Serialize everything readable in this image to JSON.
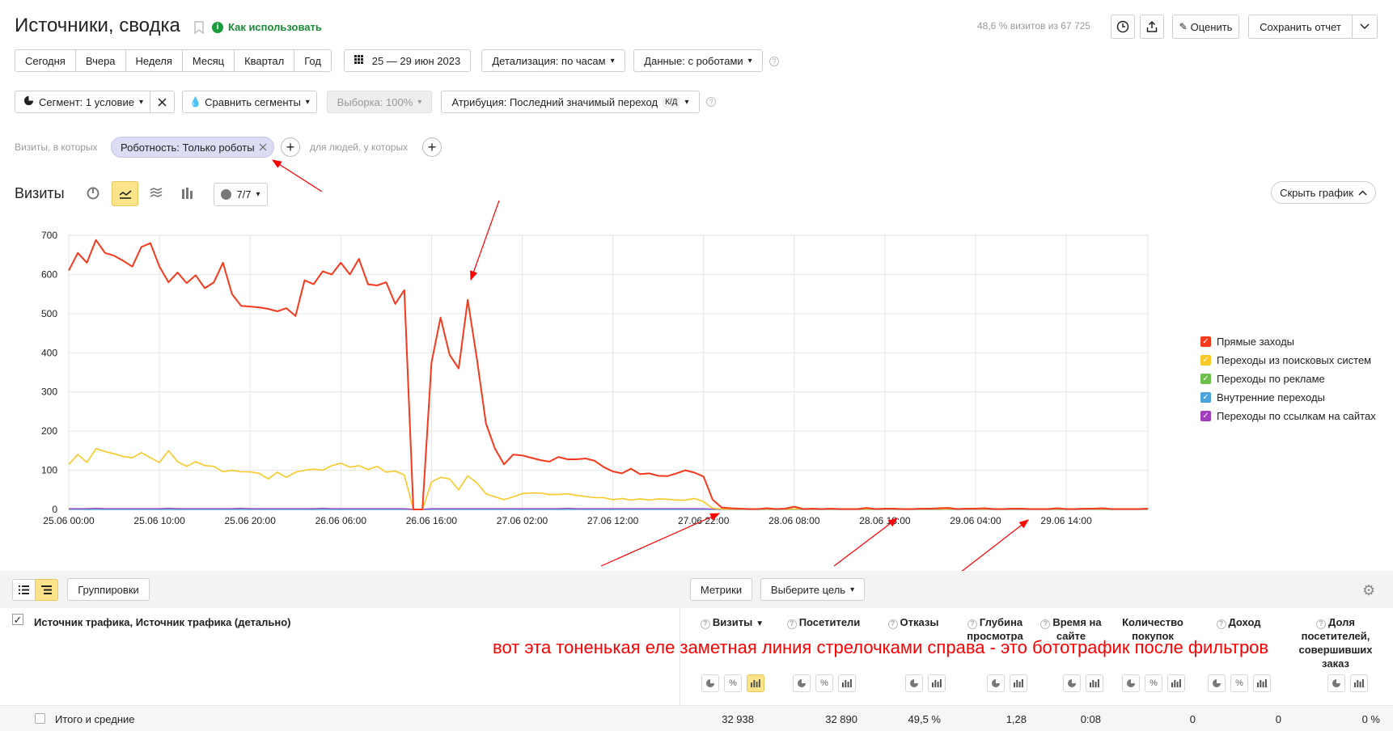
{
  "header": {
    "title": "Источники, сводка",
    "how_to_use": "Как использовать",
    "visits_info": "48,6 % визитов из 67 725",
    "rate_label": "Оценить",
    "save_report_label": "Сохранить отчет"
  },
  "periods": [
    "Сегодня",
    "Вчера",
    "Неделя",
    "Месяц",
    "Квартал",
    "Год"
  ],
  "date_range": "25 — 29 июн 2023",
  "detail_label": "Детализация: по часам",
  "data_label": "Данные: с роботами",
  "segment": {
    "label": "Сегмент: 1 условие",
    "compare_label": "Сравнить сегменты",
    "sample_label": "Выборка: 100%",
    "attribution_label": "Атрибуция: Последний значимый переход",
    "attribution_badge": "К/Д"
  },
  "filter": {
    "visits_prefix": "Визиты, в которых",
    "chip_label": "Роботность: Только роботы",
    "people_prefix": "для людей, у которых"
  },
  "chart_header": {
    "title": "Визиты",
    "series_count": "7/7",
    "hide_chart": "Скрыть график"
  },
  "legend": [
    {
      "name": "Прямые заходы",
      "color": "#f5391c"
    },
    {
      "name": "Переходы из поисковых систем",
      "color": "#f9c826"
    },
    {
      "name": "Переходы по рекламе",
      "color": "#6cc04a"
    },
    {
      "name": "Внутренние переходы",
      "color": "#4aa3df"
    },
    {
      "name": "Переходы по ссылкам на сайтах",
      "color": "#a23dbf"
    }
  ],
  "chart_data": {
    "type": "line",
    "x_ticks": [
      "25.06 00:00",
      "25.06 10:00",
      "25.06 20:00",
      "26.06 06:00",
      "26.06 16:00",
      "27.06 02:00",
      "27.06 12:00",
      "27.06 22:00",
      "28.06 08:00",
      "28.06 18:00",
      "29.06 04:00",
      "29.06 14:00"
    ],
    "y_ticks": [
      0,
      100,
      200,
      300,
      400,
      500,
      600,
      700
    ],
    "ylim": [
      0,
      700
    ],
    "x_hours_span": 119,
    "series": [
      {
        "name": "Прямые заходы",
        "color": "#f5391c",
        "values": [
          610,
          655,
          630,
          688,
          655,
          648,
          635,
          620,
          670,
          680,
          620,
          580,
          605,
          578,
          598,
          565,
          580,
          630,
          550,
          520,
          518,
          516,
          512,
          506,
          514,
          494,
          585,
          575,
          608,
          600,
          630,
          600,
          640,
          575,
          572,
          580,
          525,
          560,
          0,
          0,
          375,
          490,
          395,
          360,
          535,
          385,
          220,
          155,
          115,
          140,
          138,
          132,
          126,
          122,
          134,
          128,
          128,
          130,
          124,
          108,
          97,
          92,
          104,
          90,
          92,
          86,
          85,
          92,
          100,
          94,
          84,
          25,
          5,
          3,
          2,
          1,
          1,
          3,
          1,
          2,
          7,
          1,
          2,
          1,
          2,
          1,
          1,
          1,
          4,
          1,
          2,
          2,
          1,
          1,
          2,
          2,
          3,
          4,
          1,
          2,
          2,
          3,
          1,
          1,
          2,
          2,
          1,
          1,
          1,
          3,
          1,
          1,
          2,
          2,
          3,
          1,
          1,
          1,
          1,
          2
        ]
      },
      {
        "name": "Переходы из поисковых систем",
        "color": "#f9c826",
        "values": [
          115,
          140,
          120,
          155,
          148,
          142,
          135,
          132,
          145,
          132,
          120,
          150,
          122,
          110,
          122,
          112,
          110,
          96,
          100,
          96,
          96,
          92,
          78,
          95,
          82,
          95,
          100,
          103,
          100,
          112,
          118,
          108,
          112,
          102,
          110,
          95,
          98,
          88,
          0,
          0,
          70,
          82,
          78,
          50,
          86,
          68,
          40,
          32,
          25,
          32,
          40,
          42,
          42,
          38,
          38,
          40,
          36,
          33,
          30,
          30,
          25,
          28,
          24,
          27,
          24,
          27,
          26,
          24,
          24,
          28,
          20,
          3,
          1,
          1,
          1,
          1,
          1,
          1,
          1,
          1,
          1,
          1,
          1,
          1,
          1,
          1,
          1,
          1,
          1,
          1,
          1,
          1,
          1,
          1,
          1,
          1,
          1,
          1,
          1,
          1,
          1,
          1,
          1,
          1,
          1,
          1,
          1,
          1,
          1,
          1,
          1,
          1,
          1,
          1,
          1,
          1,
          1,
          1,
          1,
          1
        ]
      },
      {
        "name": "Переходы по рекламе",
        "color": "#6cc04a",
        "values": [
          0,
          0,
          0,
          0,
          0,
          0,
          0,
          0,
          0,
          0,
          0,
          0,
          0,
          0,
          0,
          0,
          0,
          0,
          0,
          0,
          0,
          0,
          0,
          0,
          0,
          0,
          0,
          0,
          0,
          0,
          0,
          0,
          0,
          0,
          0,
          0,
          0,
          0,
          0,
          0,
          0,
          0,
          0,
          0,
          0,
          0,
          0,
          0,
          0,
          0,
          0,
          0,
          0,
          0,
          0,
          0,
          0,
          0,
          0,
          0,
          0,
          0,
          0,
          0,
          0,
          0,
          0,
          0,
          0,
          0,
          0,
          0,
          0,
          0,
          0,
          0,
          0,
          0,
          0,
          0,
          0,
          0,
          0,
          0,
          0,
          0,
          0,
          0,
          0,
          0,
          0,
          0,
          0,
          0,
          0,
          0,
          0,
          0,
          0,
          0,
          0,
          0,
          0,
          0,
          0,
          0,
          0,
          0,
          0,
          0,
          0,
          0,
          0,
          0,
          0,
          0,
          0,
          0,
          0,
          0
        ]
      },
      {
        "name": "Внутренние переходы",
        "color": "#4aa3df",
        "values": [
          0,
          0,
          0,
          0,
          0,
          0,
          0,
          0,
          0,
          0,
          0,
          0,
          0,
          0,
          0,
          0,
          0,
          0,
          0,
          0,
          0,
          0,
          0,
          0,
          0,
          0,
          0,
          0,
          0,
          0,
          0,
          0,
          0,
          0,
          0,
          0,
          0,
          0,
          0,
          0,
          0,
          0,
          0,
          0,
          0,
          0,
          0,
          0,
          0,
          0,
          0,
          0,
          0,
          0,
          0,
          0,
          0,
          0,
          0,
          0,
          0,
          0,
          0,
          0,
          0,
          0,
          0,
          0,
          0,
          0,
          0,
          0,
          0,
          0,
          0,
          0,
          0,
          0,
          0,
          0,
          0,
          0,
          0,
          0,
          0,
          0,
          0,
          0,
          0,
          0,
          0,
          0,
          0,
          0,
          0,
          0,
          0,
          0,
          0,
          0,
          0,
          0,
          0,
          0,
          0,
          0,
          0,
          0,
          0,
          0,
          0,
          0,
          0,
          0,
          0,
          0,
          0,
          0,
          0,
          0
        ]
      },
      {
        "name": "Переходы по ссылкам на сайтах",
        "color": "#a23dbf",
        "values": [
          2,
          2,
          2,
          3,
          2,
          2,
          2,
          2,
          2,
          2,
          2,
          3,
          2,
          2,
          2,
          2,
          2,
          2,
          2,
          3,
          2,
          2,
          2,
          2,
          2,
          2,
          2,
          2,
          3,
          2,
          2,
          2,
          2,
          2,
          2,
          2,
          2,
          2,
          0,
          0,
          2,
          2,
          2,
          2,
          2,
          2,
          2,
          2,
          2,
          2,
          2,
          2,
          2,
          2,
          2,
          3,
          2,
          2,
          2,
          2,
          2,
          2,
          2,
          2,
          2,
          2,
          2,
          2,
          2,
          2,
          2,
          1,
          1,
          1,
          1,
          1,
          1,
          1,
          1,
          1,
          1,
          1,
          1,
          1,
          1,
          1,
          1,
          1,
          1,
          1,
          1,
          1,
          1,
          1,
          1,
          1,
          1,
          1,
          1,
          1,
          1,
          1,
          1,
          1,
          1,
          1,
          1,
          1,
          1,
          1,
          1,
          1,
          1,
          1,
          1,
          1,
          1,
          1,
          1,
          1
        ]
      }
    ]
  },
  "table": {
    "groupings_label": "Группировки",
    "metrics_label": "Метрики",
    "goal_label": "Выберите цель",
    "dimension_label": "Источник трафика, Источник трафика (детально)",
    "columns": [
      {
        "label": "Визиты",
        "sort": "▼"
      },
      {
        "label": "Посетители"
      },
      {
        "label": "Отказы"
      },
      {
        "label": "Глубина просмотра"
      },
      {
        "label": "Время на сайте"
      },
      {
        "label": "Количество покупок"
      },
      {
        "label": "Доход"
      },
      {
        "label": "Доля посетителей, совершивших заказ"
      }
    ],
    "totals_label": "Итого и средние",
    "totals": [
      "32 938",
      "32 890",
      "49,5 %",
      "1,28",
      "0:08",
      "0",
      "0",
      "0 %"
    ]
  },
  "annotation": {
    "text": "вот эта тоненькая еле заметная линия стрелочками справа - это бототрафик после фильтров",
    "color": "#ff0000"
  }
}
